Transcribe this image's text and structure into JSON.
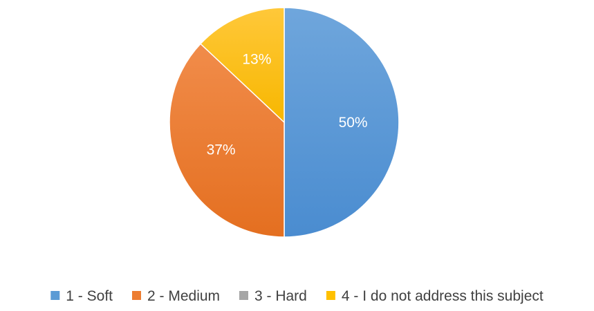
{
  "chart_data": {
    "type": "pie",
    "categories": [
      "1 - Soft",
      "2 - Medium",
      "3 - Hard",
      "4 - I do not address this subject"
    ],
    "values": [
      50,
      37,
      0,
      13
    ],
    "data_labels": [
      "50%",
      "37%",
      "",
      "13%"
    ],
    "colors": [
      "#5B9BD5",
      "#ED7D31",
      "#A5A5A5",
      "#FFC000"
    ],
    "legend_position": "bottom",
    "start_angle_deg": 0,
    "direction": "clockwise"
  }
}
